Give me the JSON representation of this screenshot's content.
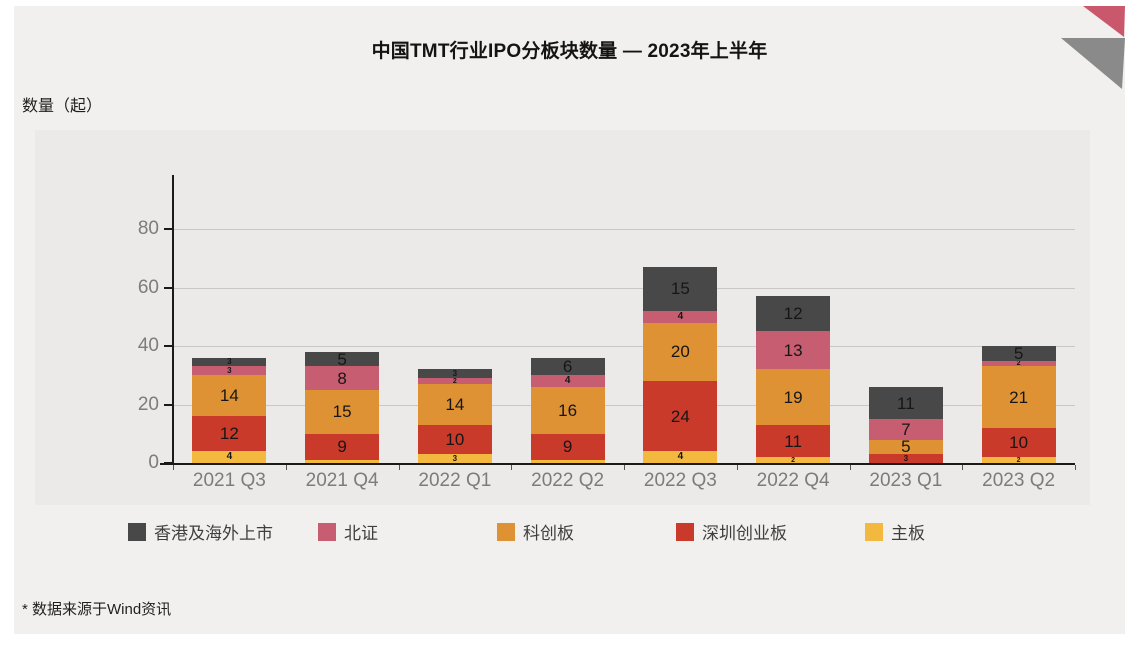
{
  "header": {
    "title": "中国TMT行业IPO分板块数量 — 2023年上半年",
    "unit_label": "数量（起）"
  },
  "footnote": "* 数据来源于Wind资讯",
  "decoration": {
    "pink_triangle_color": "#c9586c",
    "gray_triangle_color": "#8a8a8a"
  },
  "chart_data": {
    "type": "bar",
    "stacked": true,
    "title": "中国TMT行业IPO分板块数量 — 2023年上半年",
    "ylabel": "数量（起）",
    "xlabel": "",
    "grid": true,
    "legend_position": "bottom",
    "ylim": [
      0,
      100
    ],
    "yticks": [
      0,
      20,
      40,
      60,
      80
    ],
    "categories": [
      "2021 Q3",
      "2021 Q4",
      "2022 Q1",
      "2022 Q2",
      "2022 Q3",
      "2022 Q4",
      "2023 Q1",
      "2023 Q2"
    ],
    "series": [
      {
        "name": "主板",
        "color": "#f3b83e",
        "values": [
          4,
          1,
          3,
          1,
          4,
          2,
          0,
          2
        ]
      },
      {
        "name": "深圳创业板",
        "color": "#ca3a2b",
        "values": [
          12,
          9,
          10,
          9,
          24,
          11,
          3,
          10
        ]
      },
      {
        "name": "科创板",
        "color": "#de9234",
        "values": [
          14,
          15,
          14,
          16,
          20,
          19,
          5,
          21
        ]
      },
      {
        "name": "北证",
        "color": "#c75d70",
        "values": [
          3,
          8,
          2,
          4,
          4,
          13,
          7,
          2
        ]
      },
      {
        "name": "香港及海外上市",
        "color": "#484848",
        "values": [
          3,
          5,
          3,
          6,
          15,
          12,
          11,
          5
        ]
      }
    ],
    "totals": [
      36,
      38,
      32,
      36,
      67,
      57,
      26,
      40
    ],
    "legend_order": [
      "香港及海外上市",
      "北证",
      "科创板",
      "深圳创业板",
      "主板"
    ]
  }
}
